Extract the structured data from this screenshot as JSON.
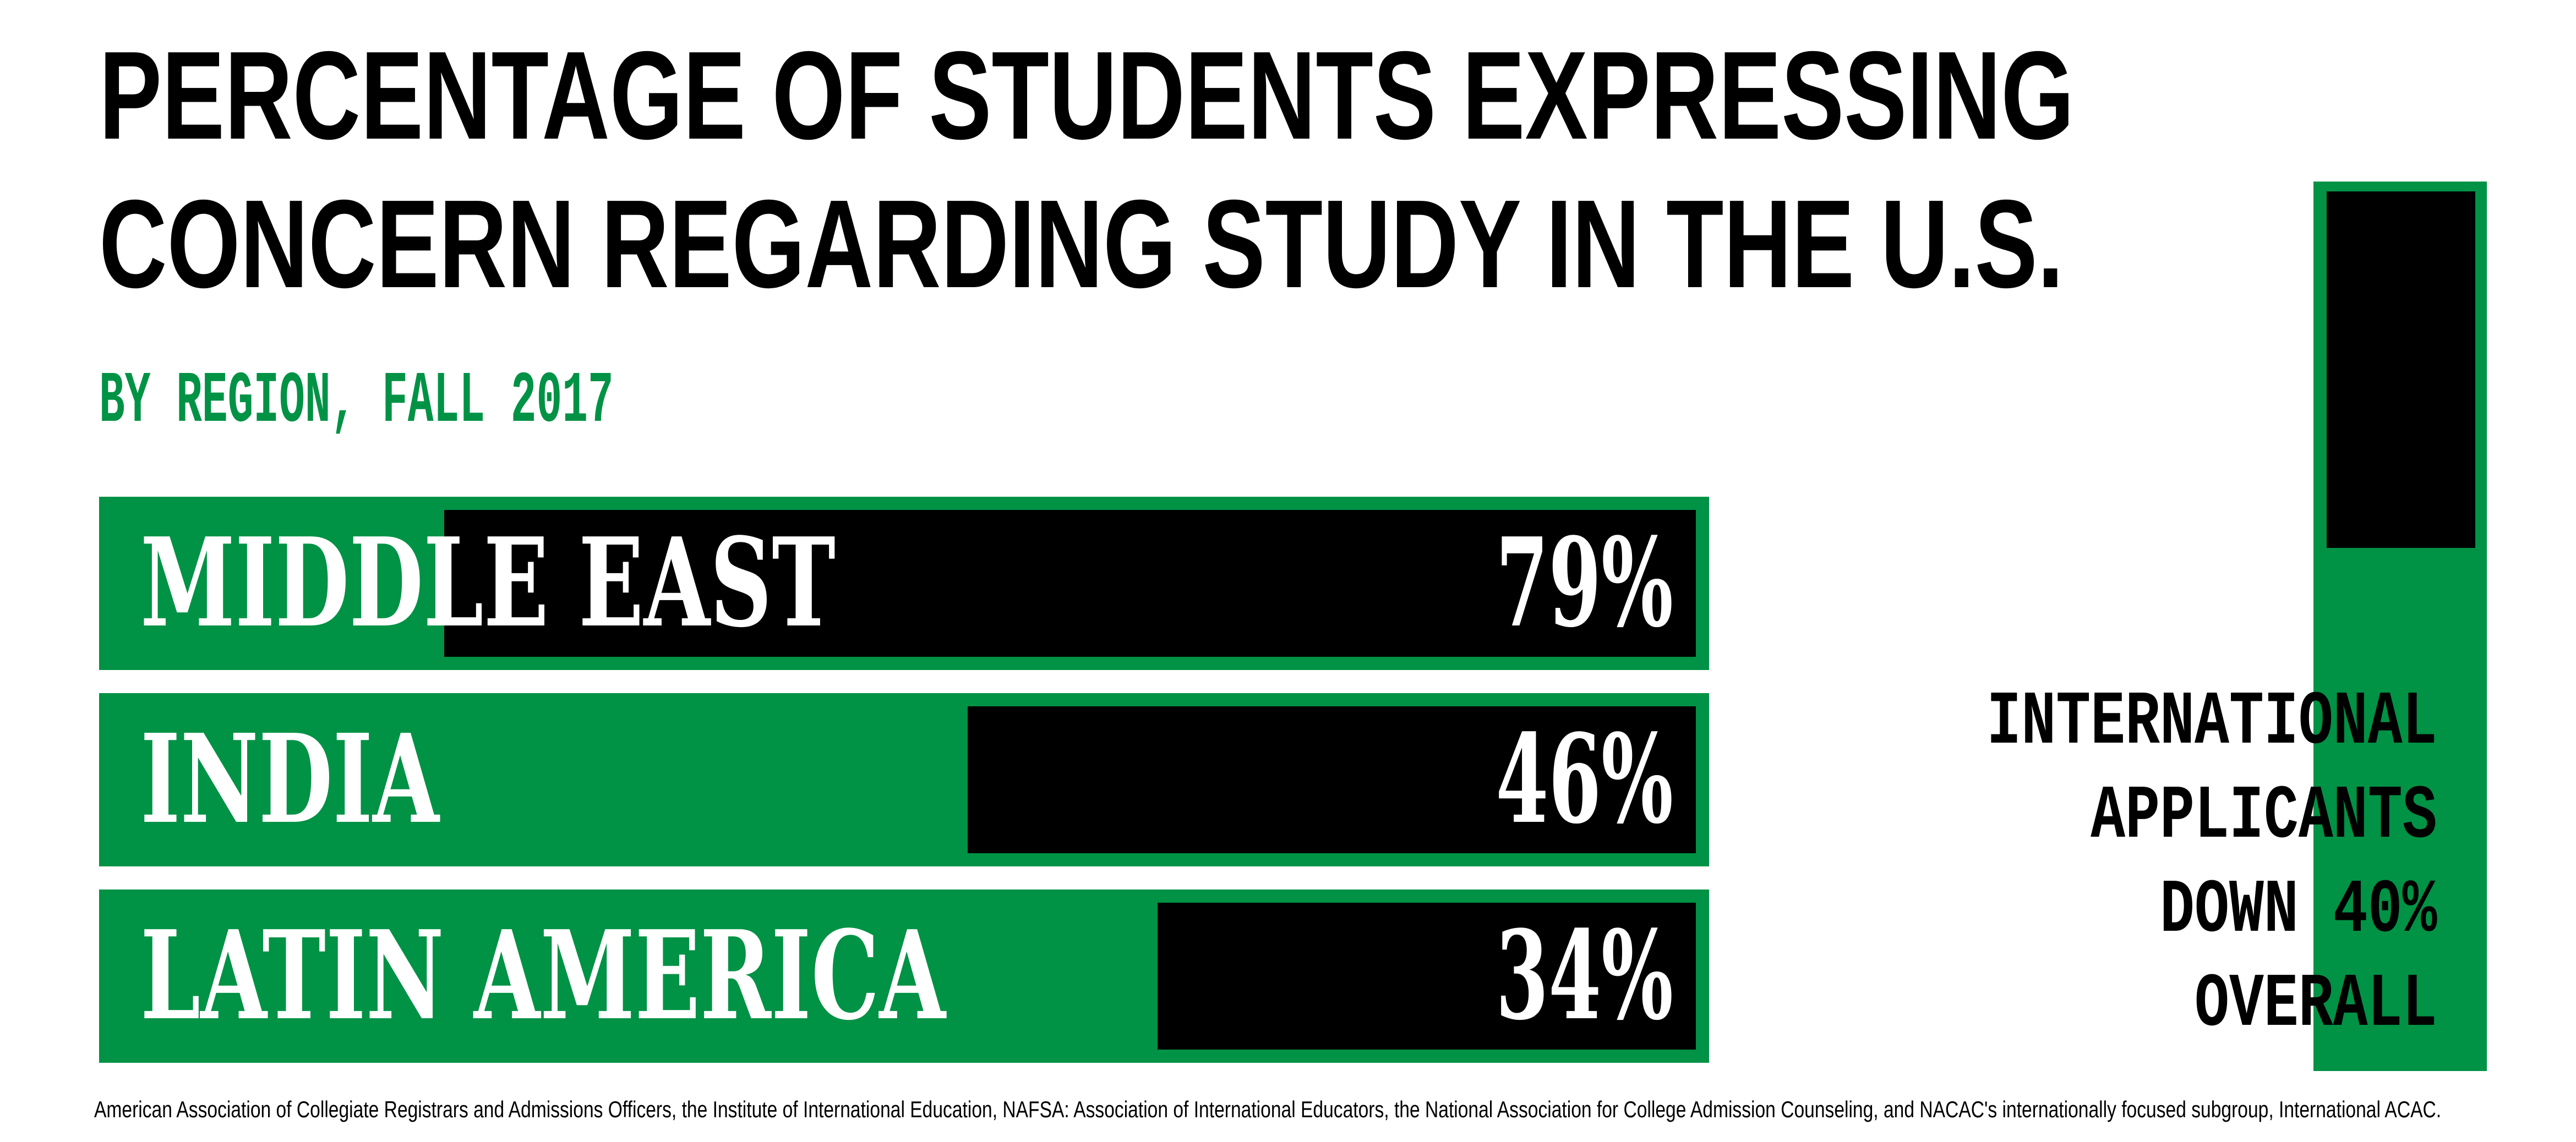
{
  "header": {
    "title_line1": "PERCENTAGE OF STUDENTS EXPRESSING",
    "title_line2": "CONCERN REGARDING STUDY IN THE U.S.",
    "subtitle": "BY REGION, FALL 2017"
  },
  "chart_data": [
    {
      "type": "bar",
      "orientation": "horizontal",
      "title": "PERCENTAGE OF STUDENTS EXPRESSING CONCERN REGARDING STUDY IN THE U.S.",
      "subtitle": "BY REGION, FALL 2017",
      "categories": [
        "MIDDLE EAST",
        "INDIA",
        "LATIN AMERICA"
      ],
      "values": [
        79,
        46,
        34
      ],
      "value_labels": [
        "79%",
        "46%",
        "34%"
      ],
      "xlim": [
        0,
        100
      ],
      "grid": false,
      "legend": false,
      "track_color": "#009245",
      "bar_color": "#000000",
      "label_color": "#ffffff"
    },
    {
      "type": "bar",
      "orientation": "vertical",
      "title": "INTERNATIONAL APPLICANTS DOWN 40% OVERALL",
      "categories": [
        "INTERNATIONAL APPLICANTS"
      ],
      "values": [
        40
      ],
      "value_labels": [
        "40%"
      ],
      "ylim": [
        0,
        100
      ],
      "track_color": "#009245",
      "bar_color": "#000000"
    }
  ],
  "side_stat": {
    "lines": [
      "INTERNATIONAL",
      "APPLICANTS",
      "DOWN 40%",
      "OVERALL"
    ]
  },
  "source": "American Association of Collegiate Registrars and Admissions Officers, the Institute of International Education, NAFSA: Association of International Educators, the National Association for College Admission Counseling, and NACAC's internationally focused subgroup, International ACAC.",
  "colors": {
    "green": "#009245",
    "black": "#000000",
    "white": "#ffffff",
    "background": "#ffffff"
  }
}
